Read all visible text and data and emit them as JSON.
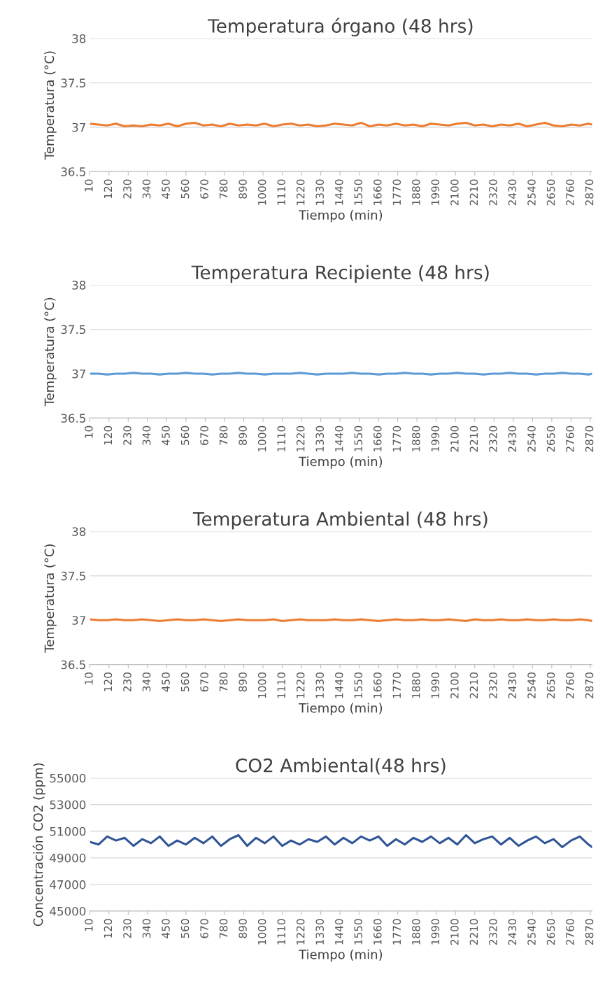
{
  "chart_data": [
    {
      "type": "line",
      "title": "Temperatura órgano (48 hrs)",
      "xlabel": "Tiempo (min)",
      "ylabel": "Temperatura (°C)",
      "grid": "y",
      "x": [
        10,
        60,
        110,
        160,
        210,
        260,
        310,
        360,
        410,
        460,
        510,
        560,
        610,
        660,
        710,
        760,
        810,
        860,
        910,
        960,
        1010,
        1060,
        1110,
        1160,
        1210,
        1260,
        1310,
        1360,
        1410,
        1460,
        1510,
        1560,
        1610,
        1660,
        1710,
        1760,
        1810,
        1860,
        1910,
        1960,
        2010,
        2060,
        2110,
        2160,
        2210,
        2260,
        2310,
        2360,
        2410,
        2460,
        2510,
        2560,
        2610,
        2660,
        2710,
        2760,
        2810,
        2860,
        2880
      ],
      "xlim": [
        10,
        2880
      ],
      "xticks": [
        10,
        120,
        230,
        340,
        450,
        560,
        670,
        780,
        890,
        1000,
        1110,
        1220,
        1330,
        1440,
        1550,
        1660,
        1770,
        1880,
        1990,
        2100,
        2210,
        2320,
        2430,
        2540,
        2650,
        2760,
        2870
      ],
      "ylim": [
        36.5,
        38
      ],
      "yticks": [
        36.5,
        37,
        37.5,
        38
      ],
      "series": [
        {
          "color": "#ed7d31",
          "values": [
            37.04,
            37.03,
            37.02,
            37.04,
            37.01,
            37.02,
            37.01,
            37.03,
            37.02,
            37.04,
            37.01,
            37.04,
            37.05,
            37.02,
            37.03,
            37.01,
            37.04,
            37.02,
            37.03,
            37.02,
            37.04,
            37.01,
            37.03,
            37.04,
            37.02,
            37.03,
            37.01,
            37.02,
            37.04,
            37.03,
            37.02,
            37.05,
            37.01,
            37.03,
            37.02,
            37.04,
            37.02,
            37.03,
            37.01,
            37.04,
            37.03,
            37.02,
            37.04,
            37.05,
            37.02,
            37.03,
            37.01,
            37.03,
            37.02,
            37.04,
            37.01,
            37.03,
            37.05,
            37.02,
            37.01,
            37.03,
            37.02,
            37.04,
            37.03
          ]
        }
      ]
    },
    {
      "type": "line",
      "title": "Temperatura Recipiente (48 hrs)",
      "xlabel": "Tiempo (min)",
      "ylabel": "Temperatura (°C)",
      "grid": "y",
      "x": [
        10,
        60,
        110,
        160,
        210,
        260,
        310,
        360,
        410,
        460,
        510,
        560,
        610,
        660,
        710,
        760,
        810,
        860,
        910,
        960,
        1010,
        1060,
        1110,
        1160,
        1210,
        1260,
        1310,
        1360,
        1410,
        1460,
        1510,
        1560,
        1610,
        1660,
        1710,
        1760,
        1810,
        1860,
        1910,
        1960,
        2010,
        2060,
        2110,
        2160,
        2210,
        2260,
        2310,
        2360,
        2410,
        2460,
        2510,
        2560,
        2610,
        2660,
        2710,
        2760,
        2810,
        2860,
        2880
      ],
      "xlim": [
        10,
        2880
      ],
      "xticks": [
        10,
        120,
        230,
        340,
        450,
        560,
        670,
        780,
        890,
        1000,
        1110,
        1220,
        1330,
        1440,
        1550,
        1660,
        1770,
        1880,
        1990,
        2100,
        2210,
        2320,
        2430,
        2540,
        2650,
        2760,
        2870
      ],
      "ylim": [
        36.5,
        38
      ],
      "yticks": [
        36.5,
        37,
        37.5,
        38
      ],
      "series": [
        {
          "color": "#5b9bd5",
          "values": [
            37,
            37,
            36.99,
            37,
            37,
            37.01,
            37,
            37,
            36.99,
            37,
            37,
            37.01,
            37,
            37,
            36.99,
            37,
            37,
            37.01,
            37,
            37,
            36.99,
            37,
            37,
            37,
            37.01,
            37,
            36.99,
            37,
            37,
            37,
            37.01,
            37,
            37,
            36.99,
            37,
            37,
            37.01,
            37,
            37,
            36.99,
            37,
            37,
            37.01,
            37,
            37,
            36.99,
            37,
            37,
            37.01,
            37,
            37,
            36.99,
            37,
            37,
            37.01,
            37,
            37,
            36.99,
            37
          ]
        }
      ]
    },
    {
      "type": "line",
      "title": "Temperatura Ambiental (48 hrs)",
      "xlabel": "Tiempo (min)",
      "ylabel": "Temperatura (°C)",
      "grid": "y",
      "x": [
        10,
        60,
        110,
        160,
        210,
        260,
        310,
        360,
        410,
        460,
        510,
        560,
        610,
        660,
        710,
        760,
        810,
        860,
        910,
        960,
        1010,
        1060,
        1110,
        1160,
        1210,
        1260,
        1310,
        1360,
        1410,
        1460,
        1510,
        1560,
        1610,
        1660,
        1710,
        1760,
        1810,
        1860,
        1910,
        1960,
        2010,
        2060,
        2110,
        2160,
        2210,
        2260,
        2310,
        2360,
        2410,
        2460,
        2510,
        2560,
        2610,
        2660,
        2710,
        2760,
        2810,
        2860,
        2880
      ],
      "xlim": [
        10,
        2880
      ],
      "xticks": [
        10,
        120,
        230,
        340,
        450,
        560,
        670,
        780,
        890,
        1000,
        1110,
        1220,
        1330,
        1440,
        1550,
        1660,
        1770,
        1880,
        1990,
        2100,
        2210,
        2320,
        2430,
        2540,
        2650,
        2760,
        2870
      ],
      "ylim": [
        36.5,
        38
      ],
      "yticks": [
        36.5,
        37,
        37.5,
        38
      ],
      "series": [
        {
          "color": "#ed7d31",
          "values": [
            37.01,
            37,
            37,
            37.01,
            37,
            37,
            37.01,
            37,
            36.99,
            37,
            37.01,
            37,
            37,
            37.01,
            37,
            36.99,
            37,
            37.01,
            37,
            37,
            37,
            37.01,
            36.99,
            37,
            37.01,
            37,
            37,
            37,
            37.01,
            37,
            37,
            37.01,
            37,
            36.99,
            37,
            37.01,
            37,
            37,
            37.01,
            37,
            37,
            37.01,
            37,
            36.99,
            37.01,
            37,
            37,
            37.01,
            37,
            37,
            37.01,
            37,
            37,
            37.01,
            37,
            37,
            37.01,
            37,
            36.99
          ]
        }
      ]
    },
    {
      "type": "line",
      "title": "CO2 Ambiental(48 hrs)",
      "xlabel": "Tiempo (min)",
      "ylabel": "Concentración CO2 (ppm)",
      "grid": "y",
      "x": [
        10,
        60,
        110,
        160,
        210,
        260,
        310,
        360,
        410,
        460,
        510,
        560,
        610,
        660,
        710,
        760,
        810,
        860,
        910,
        960,
        1010,
        1060,
        1110,
        1160,
        1210,
        1260,
        1310,
        1360,
        1410,
        1460,
        1510,
        1560,
        1610,
        1660,
        1710,
        1760,
        1810,
        1860,
        1910,
        1960,
        2010,
        2060,
        2110,
        2160,
        2210,
        2260,
        2310,
        2360,
        2410,
        2460,
        2510,
        2560,
        2610,
        2660,
        2710,
        2760,
        2810,
        2860,
        2880
      ],
      "xlim": [
        10,
        2880
      ],
      "xticks": [
        10,
        120,
        230,
        340,
        450,
        560,
        670,
        780,
        890,
        1000,
        1110,
        1220,
        1330,
        1440,
        1550,
        1660,
        1770,
        1880,
        1990,
        2100,
        2210,
        2320,
        2430,
        2540,
        2650,
        2760,
        2870
      ],
      "ylim": [
        45000,
        55000
      ],
      "yticks": [
        45000,
        47000,
        49000,
        51000,
        53000,
        55000
      ],
      "series": [
        {
          "color": "#2f5597",
          "values": [
            50200,
            50000,
            50600,
            50300,
            50500,
            49900,
            50400,
            50100,
            50600,
            49900,
            50300,
            50000,
            50500,
            50100,
            50600,
            49900,
            50400,
            50700,
            49900,
            50500,
            50100,
            50600,
            49900,
            50300,
            50000,
            50400,
            50200,
            50600,
            50000,
            50500,
            50100,
            50600,
            50300,
            50600,
            49900,
            50400,
            50000,
            50500,
            50200,
            50600,
            50100,
            50500,
            50000,
            50700,
            50100,
            50400,
            50600,
            50000,
            50500,
            49900,
            50300,
            50600,
            50100,
            50400,
            49800,
            50300,
            50600,
            50000,
            49800
          ]
        }
      ]
    }
  ]
}
